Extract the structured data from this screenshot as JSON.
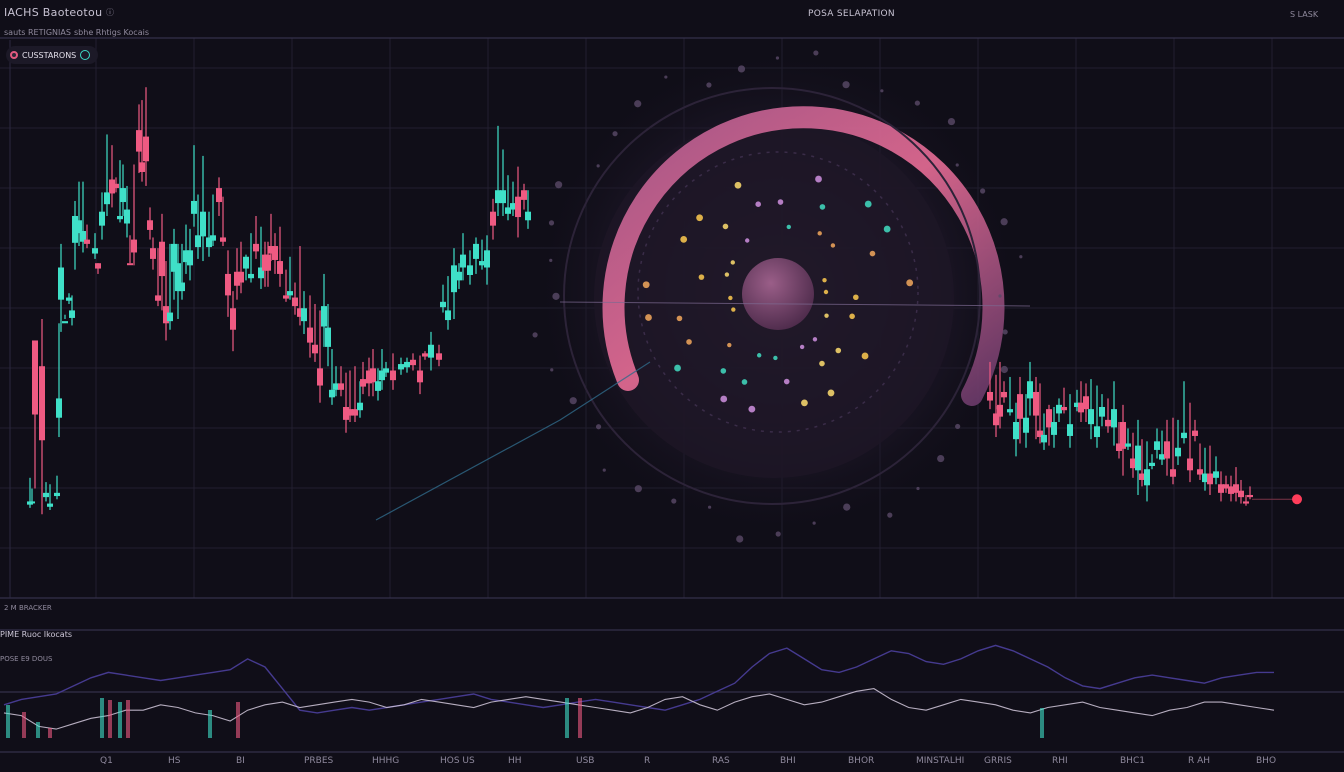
{
  "header": {
    "title": "IACHS Baoteotou",
    "subtitle": "sauts RETIGNIAS",
    "subtitle2": "sbhe Rhtigs Kocais",
    "center": "POSA SELAPATION",
    "right": "S LASK",
    "badge": "CUSSTARONS"
  },
  "panels": {
    "volume_label": "2 M BRACKER",
    "indicator_title": "PIME Ruoc Ikocats",
    "indicator_sub": "POSE E9 DOUS",
    "xaxis_labels": [
      "Q1",
      "HS",
      "BI",
      "PRBES",
      "HHHG",
      "HOS US",
      "HH",
      "USB",
      "R",
      "RAS",
      "BHI",
      "BHOR",
      "MINSTALHI",
      "GRRIS",
      "RHI",
      "BHC1",
      "R AH",
      "BHO"
    ]
  },
  "colors": {
    "background": "#100e18",
    "up": "#3fe0c8",
    "down": "#ef5a82",
    "ring": "#e36f9a",
    "grid": "#221f30"
  },
  "chart_data": [
    {
      "type": "candlestick",
      "title": "",
      "grid": true,
      "up_color": "#3fe0c8",
      "down_color": "#ef5a82",
      "candles": [
        [
          30,
          45,
          56,
          42,
          "u"
        ],
        [
          32,
          45,
          51,
          44,
          "u"
        ],
        [
          35,
          120,
          118,
          51,
          "d"
        ],
        [
          42,
          108,
          130,
          39,
          "d"
        ],
        [
          46,
          49,
          54,
          45,
          "u"
        ],
        [
          50,
          44,
          53,
          41,
          "u"
        ],
        [
          57,
          49,
          57,
          46,
          "u"
        ],
        [
          59,
          93,
          128,
          75,
          "u"
        ],
        [
          61,
          154,
          165,
          124,
          "u"
        ],
        [
          65,
          128,
          132,
          130,
          "u"
        ],
        [
          69,
          140,
          142,
          137,
          "u"
        ],
        [
          72,
          134,
          141,
          127,
          "u"
        ],
        [
          75,
          178,
          185,
          153,
          "u"
        ],
        [
          79,
          176,
          194,
          164,
          "u"
        ],
        [
          83,
          171,
          194,
          161,
          "u"
        ],
        [
          87,
          167,
          174,
          163,
          "d"
        ],
        [
          95,
          163,
          170,
          158,
          "u"
        ],
        [
          98,
          156,
          156,
          151,
          "d"
        ],
        [
          102,
          180,
          189,
          167,
          "u"
        ],
        [
          107,
          189,
          216,
          178,
          "u"
        ],
        [
          112,
          195,
          211,
          182,
          "d"
        ],
        [
          116,
          193,
          196,
          189,
          "d"
        ],
        [
          120,
          178,
          204,
          175,
          "u"
        ],
        [
          123,
          191,
          202,
          178,
          "u"
        ],
        [
          127,
          181,
          192,
          168,
          "u"
        ],
        [
          130,
          156,
          169,
          156,
          "d"
        ],
        [
          134,
          167,
          202,
          155,
          "d"
        ],
        [
          139,
          218,
          230,
          198,
          "d"
        ],
        [
          142,
          203,
          232,
          194,
          "d"
        ],
        [
          146,
          215,
          238,
          192,
          "d"
        ],
        [
          150,
          176,
          182,
          167,
          "d"
        ],
        [
          153,
          163,
          168,
          153,
          "d"
        ],
        [
          158,
          141,
          163,
          136,
          "d"
        ],
        [
          162,
          166,
          179,
          134,
          "d"
        ],
        [
          166,
          136,
          157,
          120,
          "d"
        ],
        [
          170,
          133,
          165,
          125,
          "u"
        ],
        [
          174,
          165,
          172,
          139,
          "u"
        ],
        [
          178,
          156,
          165,
          130,
          "u"
        ],
        [
          182,
          147,
          165,
          139,
          "u"
        ],
        [
          186,
          162,
          174,
          151,
          "u"
        ],
        [
          190,
          162,
          172,
          148,
          "u"
        ],
        [
          194,
          185,
          211,
          173,
          "u"
        ],
        [
          198,
          169,
          188,
          158,
          "u"
        ],
        [
          203,
          180,
          206,
          157,
          "u"
        ],
        [
          209,
          168,
          180,
          159,
          "u"
        ],
        [
          213,
          169,
          188,
          164,
          "u"
        ],
        [
          219,
          191,
          196,
          178,
          "d"
        ],
        [
          223,
          168,
          187,
          164,
          "d"
        ],
        [
          228,
          151,
          162,
          131,
          "d"
        ],
        [
          233,
          135,
          143,
          115,
          "d"
        ],
        [
          237,
          152,
          163,
          139,
          "d"
        ],
        [
          241,
          152,
          166,
          142,
          "d"
        ],
        [
          246,
          159,
          160,
          148,
          "u"
        ],
        [
          251,
          151,
          170,
          147,
          "u"
        ],
        [
          256,
          165,
          178,
          158,
          "d"
        ],
        [
          261,
          154,
          173,
          144,
          "u"
        ],
        [
          265,
          160,
          166,
          145,
          "d"
        ],
        [
          268,
          160,
          166,
          145,
          "d"
        ],
        [
          271,
          164,
          179,
          157,
          "d"
        ],
        [
          275,
          164,
          170,
          151,
          "d"
        ],
        [
          280,
          157,
          173,
          145,
          "d"
        ],
        [
          286,
          141,
          153,
          138,
          "d"
        ],
        [
          290,
          143,
          159,
          139,
          "u"
        ],
        [
          295,
          140,
          147,
          132,
          "d"
        ],
        [
          300,
          135,
          164,
          127,
          "d"
        ],
        [
          304,
          135,
          143,
          123,
          "u"
        ],
        [
          310,
          126,
          141,
          112,
          "d"
        ],
        [
          315,
          118,
          137,
          110,
          "d"
        ],
        [
          320,
          107,
          134,
          91,
          "d"
        ],
        [
          324,
          136,
          151,
          117,
          "u"
        ],
        [
          328,
          126,
          137,
          108,
          "u"
        ],
        [
          332,
          97,
          116,
          90,
          "u"
        ],
        [
          336,
          100,
          108,
          94,
          "u"
        ],
        [
          341,
          100,
          108,
          94,
          "d"
        ],
        [
          346,
          89,
          105,
          77,
          "d"
        ],
        [
          350,
          88,
          106,
          82,
          "d"
        ],
        [
          355,
          88,
          108,
          82,
          "d"
        ],
        [
          360,
          91,
          101,
          84,
          "u"
        ],
        [
          363,
          102,
          110,
          95,
          "d"
        ],
        [
          369,
          106,
          112,
          94,
          "d"
        ],
        [
          373,
          107,
          116,
          94,
          "d"
        ],
        [
          378,
          101,
          107,
          92,
          "u"
        ],
        [
          382,
          106,
          116,
          97,
          "u"
        ],
        [
          386,
          107,
          110,
          103,
          "u"
        ],
        [
          393,
          106,
          114,
          97,
          "d"
        ],
        [
          401,
          109,
          112,
          104,
          "u"
        ],
        [
          407,
          110,
          112,
          105,
          "u"
        ],
        [
          413,
          111,
          114,
          106,
          "d"
        ],
        [
          420,
          106,
          113,
          95,
          "d"
        ],
        [
          425,
          114,
          115,
          111,
          "d"
        ],
        [
          431,
          118,
          124,
          106,
          "u"
        ],
        [
          439,
          114,
          118,
          108,
          "d"
        ],
        [
          443,
          138,
          146,
          133,
          "u"
        ],
        [
          448,
          134,
          150,
          125,
          "u"
        ],
        [
          454,
          155,
          163,
          130,
          "u"
        ],
        [
          459,
          152,
          156,
          144,
          "u"
        ],
        [
          463,
          160,
          170,
          148,
          "u"
        ],
        [
          470,
          155,
          162,
          146,
          "u"
        ],
        [
          476,
          165,
          168,
          151,
          "u"
        ],
        [
          482,
          157,
          167,
          153,
          "u"
        ],
        [
          487,
          162,
          169,
          146,
          "u"
        ],
        [
          493,
          180,
          186,
          167,
          "d"
        ],
        [
          498,
          190,
          220,
          178,
          "u"
        ],
        [
          503,
          190,
          209,
          178,
          "u"
        ],
        [
          508,
          182,
          197,
          176,
          "u"
        ],
        [
          513,
          184,
          194,
          178,
          "u"
        ],
        [
          518,
          187,
          201,
          168,
          "d"
        ],
        [
          524,
          190,
          193,
          181,
          "d"
        ],
        [
          528,
          180,
          190,
          172,
          "u"
        ],
        [
          990,
          96,
          110,
          88,
          "d"
        ],
        [
          996,
          86,
          104,
          75,
          "d"
        ],
        [
          1000,
          90,
          110,
          79,
          "d"
        ],
        [
          1004,
          96,
          101,
          91,
          "d"
        ],
        [
          1010,
          88,
          103,
          85,
          "u"
        ],
        [
          1016,
          82,
          91,
          66,
          "u"
        ],
        [
          1020,
          95,
          103,
          72,
          "d"
        ],
        [
          1026,
          84,
          95,
          70,
          "u"
        ],
        [
          1030,
          101,
          110,
          85,
          "u"
        ],
        [
          1036,
          96,
          103,
          74,
          "d"
        ],
        [
          1040,
          78,
          100,
          72,
          "d"
        ],
        [
          1044,
          76,
          86,
          69,
          "u"
        ],
        [
          1049,
          88,
          90,
          71,
          "d"
        ],
        [
          1054,
          82,
          89,
          70,
          "u"
        ],
        [
          1059,
          90,
          93,
          82,
          "u"
        ],
        [
          1064,
          89,
          98,
          86,
          "d"
        ],
        [
          1070,
          81,
          95,
          70,
          "u"
        ],
        [
          1077,
          91,
          97,
          87,
          "u"
        ],
        [
          1081,
          91,
          101,
          82,
          "d"
        ],
        [
          1086,
          94,
          100,
          82,
          "d"
        ],
        [
          1091,
          88,
          102,
          74,
          "u"
        ],
        [
          1097,
          80,
          99,
          70,
          "u"
        ],
        [
          1102,
          89,
          95,
          80,
          "u"
        ],
        [
          1108,
          83,
          93,
          77,
          "d"
        ],
        [
          1114,
          88,
          101,
          71,
          "u"
        ],
        [
          1119,
          72,
          82,
          65,
          "d"
        ],
        [
          1123,
          82,
          90,
          57,
          "d"
        ],
        [
          1128,
          72,
          79,
          69,
          "u"
        ],
        [
          1133,
          65,
          77,
          56,
          "d"
        ],
        [
          1138,
          71,
          83,
          48,
          "u"
        ],
        [
          1142,
          58,
          74,
          52,
          "d"
        ],
        [
          1147,
          60,
          73,
          45,
          "u"
        ],
        [
          1152,
          63,
          67,
          60,
          "u"
        ],
        [
          1157,
          73,
          79,
          65,
          "u"
        ],
        [
          1162,
          67,
          78,
          62,
          "u"
        ],
        [
          1167,
          73,
          83,
          57,
          "d"
        ],
        [
          1173,
          60,
          84,
          53,
          "d"
        ],
        [
          1178,
          70,
          83,
          62,
          "u"
        ],
        [
          1184,
          77,
          101,
          72,
          "u"
        ],
        [
          1190,
          65,
          91,
          54,
          "d"
        ],
        [
          1195,
          78,
          83,
          73,
          "d"
        ],
        [
          1200,
          60,
          72,
          55,
          "d"
        ],
        [
          1205,
          58,
          70,
          50,
          "u"
        ],
        [
          1210,
          58,
          71,
          48,
          "d"
        ],
        [
          1216,
          59,
          66,
          53,
          "u"
        ],
        [
          1221,
          53,
          59,
          45,
          "d"
        ],
        [
          1226,
          53,
          57,
          49,
          "d"
        ],
        [
          1231,
          52,
          57,
          45,
          "d"
        ],
        [
          1236,
          53,
          61,
          45,
          "d"
        ],
        [
          1241,
          50,
          55,
          44,
          "d"
        ],
        [
          1246,
          45,
          48,
          43,
          "d"
        ],
        [
          1250,
          48,
          52,
          46,
          "d"
        ]
      ],
      "last_price_marker": 46
    },
    {
      "type": "line",
      "title": "",
      "series": [
        {
          "color": "#4b3f9c",
          "values": [
            16,
            18,
            19,
            20,
            23,
            26,
            28,
            27,
            26,
            25,
            26,
            27,
            28,
            29,
            33,
            30,
            22,
            14,
            13,
            14,
            15,
            14,
            15,
            16,
            17,
            18,
            19,
            20,
            18,
            17,
            16,
            15,
            16,
            17,
            18,
            17,
            16,
            15,
            14,
            16,
            18,
            21,
            24,
            30,
            35,
            37,
            33,
            29,
            28,
            30,
            33,
            36,
            35,
            32,
            31,
            33,
            36,
            38,
            36,
            33,
            30,
            26,
            23,
            22,
            24,
            26,
            27,
            26,
            25,
            24,
            26,
            27,
            28,
            28
          ]
        },
        {
          "color": "#c9bfd1",
          "values": [
            13,
            12,
            8,
            7,
            9,
            11,
            12,
            14,
            14,
            16,
            15,
            13,
            12,
            10,
            14,
            16,
            17,
            15,
            16,
            17,
            18,
            17,
            15,
            16,
            18,
            17,
            16,
            15,
            17,
            18,
            19,
            18,
            17,
            16,
            15,
            14,
            13,
            15,
            18,
            19,
            16,
            14,
            17,
            19,
            20,
            18,
            16,
            17,
            19,
            21,
            22,
            18,
            15,
            14,
            16,
            18,
            17,
            16,
            14,
            13,
            15,
            16,
            17,
            15,
            14,
            13,
            12,
            14,
            15,
            17,
            17,
            16,
            15,
            14
          ]
        }
      ]
    }
  ]
}
